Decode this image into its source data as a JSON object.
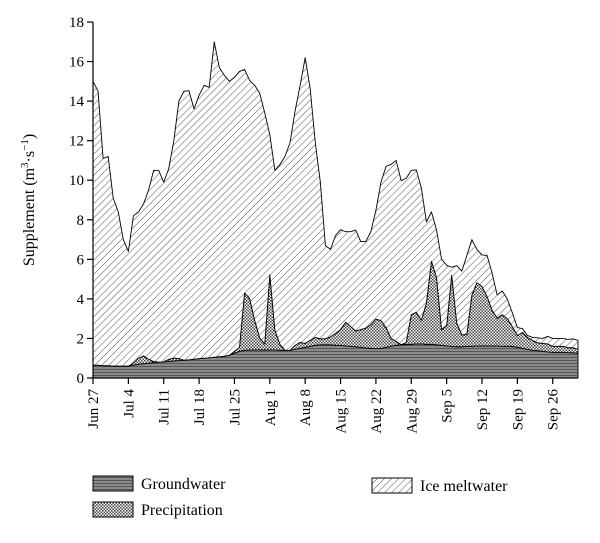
{
  "chart_data": {
    "type": "area",
    "stacked": true,
    "ylabel": "Supplement (m³·s⁻¹)",
    "ylabel_parts": {
      "pre": "Supplement (m",
      "sup1": "3",
      "mid": "·s",
      "sup2": "−1",
      "post": ")"
    },
    "xlabel": "",
    "ylim": [
      0,
      18
    ],
    "yticks": [
      0,
      2,
      4,
      6,
      8,
      10,
      12,
      14,
      16,
      18
    ],
    "xlim": [
      "2013-06-27",
      "2013-10-01"
    ],
    "x_tick_labels": [
      {
        "label": "Jun 27",
        "date": "2013-06-27"
      },
      {
        "label": "Jul 4",
        "date": "2013-07-04"
      },
      {
        "label": "Jul 11",
        "date": "2013-07-11"
      },
      {
        "label": "Jul 18",
        "date": "2013-07-18"
      },
      {
        "label": "Jul 25",
        "date": "2013-07-25"
      },
      {
        "label": "Aug 1",
        "date": "2013-08-01"
      },
      {
        "label": "Aug 8",
        "date": "2013-08-08"
      },
      {
        "label": "Aug 15",
        "date": "2013-08-15"
      },
      {
        "label": "Aug 22",
        "date": "2013-08-22"
      },
      {
        "label": "Aug 29",
        "date": "2013-08-29"
      },
      {
        "label": "Sep 5",
        "date": "2013-09-05"
      },
      {
        "label": "Sep 12",
        "date": "2013-09-12"
      },
      {
        "label": "Sep 19",
        "date": "2013-09-19"
      },
      {
        "label": "Sep 26",
        "date": "2013-09-26"
      }
    ],
    "grid": false,
    "legend_position": "bottom",
    "x_dates": [
      "2013-06-27",
      "2013-06-28",
      "2013-06-29",
      "2013-06-30",
      "2013-07-01",
      "2013-07-02",
      "2013-07-03",
      "2013-07-04",
      "2013-07-05",
      "2013-07-06",
      "2013-07-07",
      "2013-07-08",
      "2013-07-09",
      "2013-07-10",
      "2013-07-11",
      "2013-07-12",
      "2013-07-13",
      "2013-07-14",
      "2013-07-15",
      "2013-07-16",
      "2013-07-17",
      "2013-07-18",
      "2013-07-19",
      "2013-07-20",
      "2013-07-21",
      "2013-07-22",
      "2013-07-23",
      "2013-07-24",
      "2013-07-25",
      "2013-07-26",
      "2013-07-27",
      "2013-07-28",
      "2013-07-29",
      "2013-07-30",
      "2013-07-31",
      "2013-08-01",
      "2013-08-02",
      "2013-08-03",
      "2013-08-04",
      "2013-08-05",
      "2013-08-06",
      "2013-08-07",
      "2013-08-08",
      "2013-08-09",
      "2013-08-10",
      "2013-08-11",
      "2013-08-12",
      "2013-08-13",
      "2013-08-14",
      "2013-08-15",
      "2013-08-16",
      "2013-08-17",
      "2013-08-18",
      "2013-08-19",
      "2013-08-20",
      "2013-08-21",
      "2013-08-22",
      "2013-08-23",
      "2013-08-24",
      "2013-08-25",
      "2013-08-26",
      "2013-08-27",
      "2013-08-28",
      "2013-08-29",
      "2013-08-30",
      "2013-08-31",
      "2013-09-01",
      "2013-09-02",
      "2013-09-03",
      "2013-09-04",
      "2013-09-05",
      "2013-09-06",
      "2013-09-07",
      "2013-09-08",
      "2013-09-09",
      "2013-09-10",
      "2013-09-11",
      "2013-09-12",
      "2013-09-13",
      "2013-09-14",
      "2013-09-15",
      "2013-09-16",
      "2013-09-17",
      "2013-09-18",
      "2013-09-19",
      "2013-09-20",
      "2013-09-21",
      "2013-09-22",
      "2013-09-23",
      "2013-09-24",
      "2013-09-25",
      "2013-09-26",
      "2013-09-27",
      "2013-09-28",
      "2013-09-29",
      "2013-09-30",
      "2013-10-01"
    ],
    "series": [
      {
        "name": "Groundwater",
        "pattern": "horizontal-lines",
        "fill": "#8a8a8a",
        "values": [
          0.65,
          0.65,
          0.62,
          0.62,
          0.6,
          0.6,
          0.6,
          0.6,
          0.65,
          0.7,
          0.72,
          0.75,
          0.78,
          0.8,
          0.82,
          0.84,
          0.86,
          0.88,
          0.9,
          0.92,
          0.95,
          0.98,
          1.0,
          1.02,
          1.05,
          1.08,
          1.1,
          1.15,
          1.25,
          1.35,
          1.4,
          1.42,
          1.42,
          1.42,
          1.42,
          1.42,
          1.42,
          1.4,
          1.4,
          1.4,
          1.45,
          1.5,
          1.55,
          1.6,
          1.65,
          1.68,
          1.68,
          1.68,
          1.65,
          1.65,
          1.62,
          1.6,
          1.58,
          1.55,
          1.52,
          1.5,
          1.48,
          1.5,
          1.55,
          1.6,
          1.65,
          1.68,
          1.7,
          1.7,
          1.72,
          1.72,
          1.7,
          1.7,
          1.68,
          1.65,
          1.62,
          1.6,
          1.58,
          1.58,
          1.6,
          1.6,
          1.62,
          1.62,
          1.62,
          1.62,
          1.62,
          1.6,
          1.6,
          1.6,
          1.55,
          1.5,
          1.45,
          1.4,
          1.38,
          1.35,
          1.32,
          1.3,
          1.3,
          1.3,
          1.28,
          1.28,
          1.25
        ]
      },
      {
        "name": "Precipitation",
        "pattern": "crosshatch",
        "fill": "#ffffff",
        "values": [
          0,
          0,
          0,
          0,
          0,
          0,
          0,
          0,
          0.1,
          0.3,
          0.4,
          0.2,
          0.05,
          0,
          0,
          0.1,
          0.15,
          0.1,
          0,
          0,
          0,
          0,
          0,
          0,
          0,
          0,
          0,
          0,
          0.1,
          0.2,
          2.9,
          2.6,
          1.5,
          0.6,
          0.3,
          3.8,
          1.0,
          0.3,
          0,
          0,
          0.2,
          0.3,
          0.2,
          0.3,
          0.4,
          0.3,
          0.3,
          0.4,
          0.6,
          0.8,
          1.2,
          1.0,
          0.8,
          0.9,
          1.0,
          1.2,
          1.5,
          1.4,
          1.0,
          0.4,
          0.2,
          0,
          0.1,
          1.5,
          1.6,
          1.2,
          2.1,
          4.2,
          3.4,
          0.8,
          1.0,
          3.6,
          1.2,
          0.6,
          0.6,
          2.6,
          3.2,
          3.0,
          2.5,
          1.8,
          1.4,
          1.6,
          1.4,
          1.0,
          0.6,
          0.8,
          0.6,
          0.5,
          0.4,
          0.4,
          0.4,
          0.3,
          0.3,
          0.3,
          0.25,
          0.25,
          0.2
        ]
      },
      {
        "name": "Ice meltwater",
        "pattern": "diagonal-lines",
        "fill": "#ffffff",
        "values": [
          14.35,
          13.85,
          10.48,
          10.58,
          8.5,
          7.8,
          6.4,
          5.8,
          7.45,
          7.4,
          7.68,
          8.55,
          9.67,
          9.7,
          9.08,
          9.66,
          10.99,
          13.02,
          13.6,
          13.6,
          12.65,
          13.32,
          13.8,
          13.68,
          15.95,
          14.62,
          14.2,
          13.85,
          13.85,
          13.95,
          11.3,
          11.03,
          11.88,
          12.38,
          11.68,
          7.08,
          8.08,
          9.1,
          9.8,
          10.5,
          11.85,
          13.0,
          14.45,
          12.7,
          9.85,
          7.92,
          4.72,
          4.42,
          4.95,
          5.05,
          4.58,
          4.8,
          5.1,
          4.45,
          4.38,
          4.7,
          5.5,
          7.0,
          8.15,
          8.8,
          9.15,
          8.3,
          8.3,
          7.3,
          7.2,
          6.68,
          4.09,
          2.5,
          2.4,
          3.55,
          3.08,
          0.4,
          2.9,
          3.22,
          4.0,
          2.8,
          1.68,
          1.6,
          2.08,
          1.88,
          1.18,
          1.2,
          1.0,
          0.7,
          0.4,
          0.2,
          0.1,
          0.15,
          0.25,
          0.25,
          0.38,
          0.4,
          0.4,
          0.4,
          0.42,
          0.45,
          0.45
        ]
      }
    ]
  }
}
